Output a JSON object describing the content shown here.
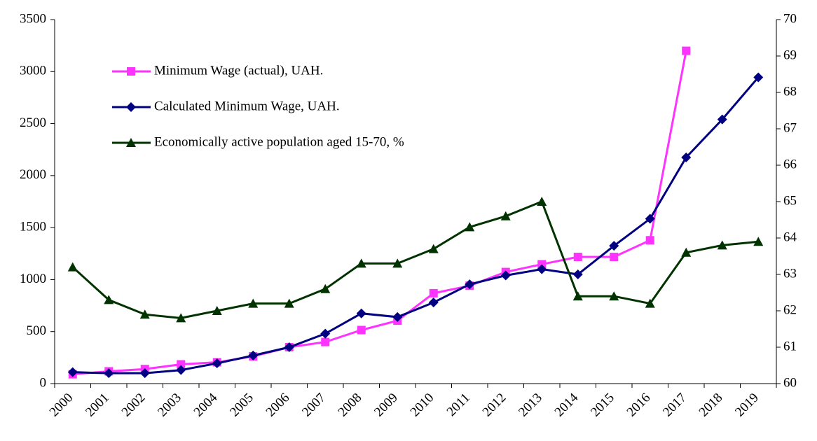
{
  "chart_data": {
    "type": "line",
    "categories": [
      "2000",
      "2001",
      "2002",
      "2003",
      "2004",
      "2005",
      "2006",
      "2007",
      "2008",
      "2009",
      "2010",
      "2011",
      "2012",
      "2013",
      "2014",
      "2015",
      "2016",
      "2017",
      "2018",
      "2019"
    ],
    "series": [
      {
        "name": "Minimum Wage (actual), UAH.",
        "color": "#ff33ff",
        "marker": "square",
        "values": [
          90,
          118,
          140,
          185,
          205,
          262,
          350,
          400,
          515,
          605,
          869,
          941,
          1073,
          1147,
          1218,
          1218,
          1378,
          3200,
          null,
          null
        ]
      },
      {
        "name": "Calculated Minimum Wage, UAH.",
        "color": "#000080",
        "marker": "diamond",
        "values": [
          110,
          100,
          100,
          130,
          195,
          270,
          350,
          480,
          675,
          640,
          780,
          955,
          1040,
          1100,
          1050,
          1325,
          1585,
          2175,
          2540,
          2945
        ]
      },
      {
        "name": "Economically active population aged 15-70, %",
        "color": "#003300",
        "marker": "triangle",
        "axis": "y2",
        "values": [
          63.2,
          62.3,
          61.9,
          61.8,
          62.0,
          62.2,
          62.2,
          62.6,
          63.3,
          63.3,
          63.7,
          64.3,
          64.6,
          65.0,
          62.4,
          62.4,
          62.2,
          63.6,
          63.8,
          63.9
        ]
      }
    ],
    "ylim": [
      0,
      3500
    ],
    "yticks": [
      0,
      500,
      1000,
      1500,
      2000,
      2500,
      3000,
      3500
    ],
    "y2lim": [
      60,
      70
    ],
    "y2ticks": [
      60,
      61,
      62,
      63,
      64,
      65,
      66,
      67,
      68,
      69,
      70
    ],
    "legend": "upper left",
    "grid": false
  }
}
